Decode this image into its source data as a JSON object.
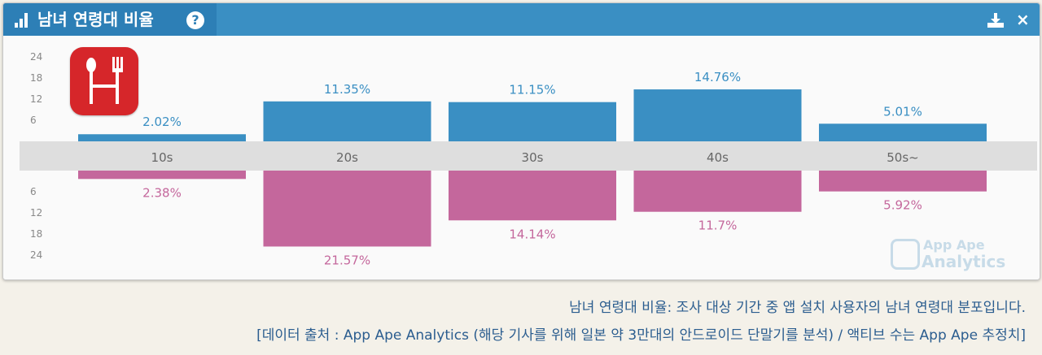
{
  "header": {
    "title": "남녀 연령대 비율",
    "help_label": "?",
    "close_label": "×"
  },
  "icons": {
    "chart": "bar-chart-icon",
    "help": "question-circle-icon",
    "download": "download-icon",
    "close": "close-icon",
    "app": "restaurant-app-icon",
    "watermark": "app-ape-logo-icon"
  },
  "colors": {
    "header": "#3a8fc3",
    "male": "#3a8fc3",
    "female": "#c4679c",
    "band": "#dedede",
    "caption": "#2b5d8f"
  },
  "watermark": {
    "line1": "App Ape",
    "line2": "Analytics"
  },
  "chart_data": {
    "type": "bar",
    "categories": [
      "10s",
      "20s",
      "30s",
      "40s",
      "50s~"
    ],
    "series": [
      {
        "values": [
          2.02,
          11.35,
          11.15,
          14.76,
          5.01
        ],
        "labels": [
          "2.02%",
          "11.35%",
          "11.15%",
          "14.76%",
          "5.01%"
        ],
        "color": "#3a8fc3",
        "direction": "up"
      },
      {
        "values": [
          2.38,
          21.57,
          14.14,
          11.7,
          5.92
        ],
        "labels": [
          "2.38%",
          "21.57%",
          "14.14%",
          "11.7%",
          "5.92%"
        ],
        "color": "#c4679c",
        "direction": "down"
      }
    ],
    "upper_ticks": [
      24,
      18,
      12,
      6
    ],
    "lower_ticks": [
      6,
      12,
      18,
      24
    ],
    "ylim": [
      0,
      24
    ],
    "grid": false
  },
  "caption": {
    "line1": "남녀 연령대 비율: 조사 대상 기간 중 앱 설치 사용자의 남녀 연령대 분포입니다.",
    "line2": "[데이터 출처 : App Ape Analytics (해당 기사를 위해 일본 약 3만대의 안드로이드 단말기를 분석) / 액티브 수는 App Ape 추정치]"
  }
}
